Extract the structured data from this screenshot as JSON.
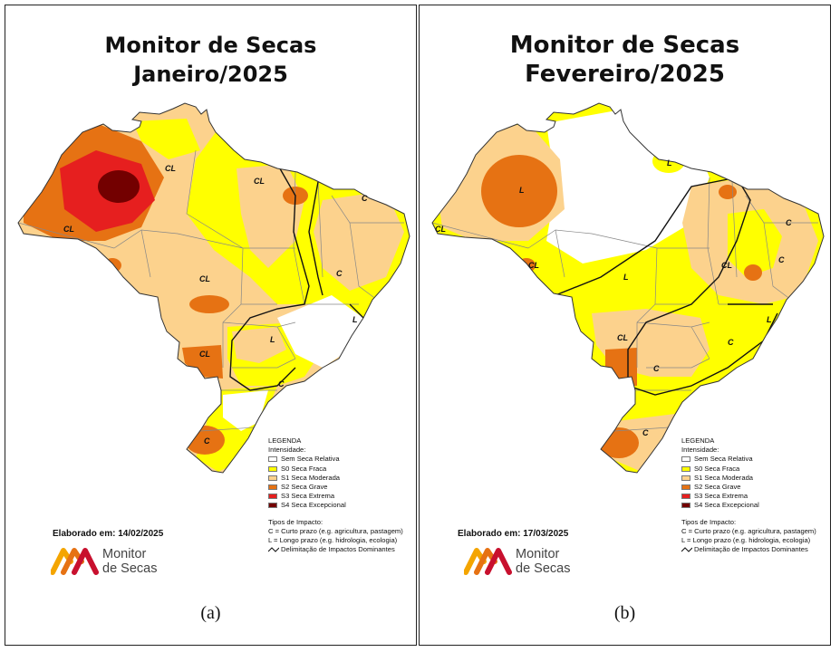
{
  "colors": {
    "none": "#ffffff",
    "s0": "#ffff00",
    "s1": "#fcd28d",
    "s2": "#e67213",
    "s3": "#e61f1f",
    "s4": "#730000",
    "border": "#333333"
  },
  "legend": {
    "title": "LEGENDA",
    "subtitle": "Intensidade:",
    "items": [
      {
        "key": "none",
        "label": "Sem Seca Relativa"
      },
      {
        "key": "s0",
        "label": "S0 Seca Fraca"
      },
      {
        "key": "s1",
        "label": "S1 Seca Moderada"
      },
      {
        "key": "s2",
        "label": "S2 Seca Grave"
      },
      {
        "key": "s3",
        "label": "S3 Seca Extrema"
      },
      {
        "key": "s4",
        "label": "S4 Seca Excepcional"
      }
    ],
    "impact_title": "Tipos de Impacto:",
    "impact_c": "C = Curto prazo (e.g. agricultura, pastagem)",
    "impact_l": "L = Longo prazo (e.g. hidrologia, ecologia)",
    "impact_line": "Delimitação de Impactos Dominantes"
  },
  "logo": {
    "line1": "Monitor",
    "line2": "de Secas"
  },
  "panels": [
    {
      "title_line1": "Monitor de Secas",
      "title_line2": "Janeiro/2025",
      "elaborado": "Elaborado em: 14/02/2025",
      "caption": "(a)",
      "impact_labels": [
        "CL",
        "CL",
        "CL",
        "C",
        "CL",
        "C",
        "CL",
        "L",
        "L",
        "C",
        "C"
      ]
    },
    {
      "title_line1": "Monitor de Secas",
      "title_line2": "Fevereiro/2025",
      "elaborado": "Elaborado em: 17/03/2025",
      "caption": "(b)",
      "impact_labels": [
        "L",
        "L",
        "CL",
        "CL",
        "L",
        "C",
        "C",
        "CL",
        "C",
        "CL",
        "L",
        "C",
        "C"
      ]
    }
  ]
}
